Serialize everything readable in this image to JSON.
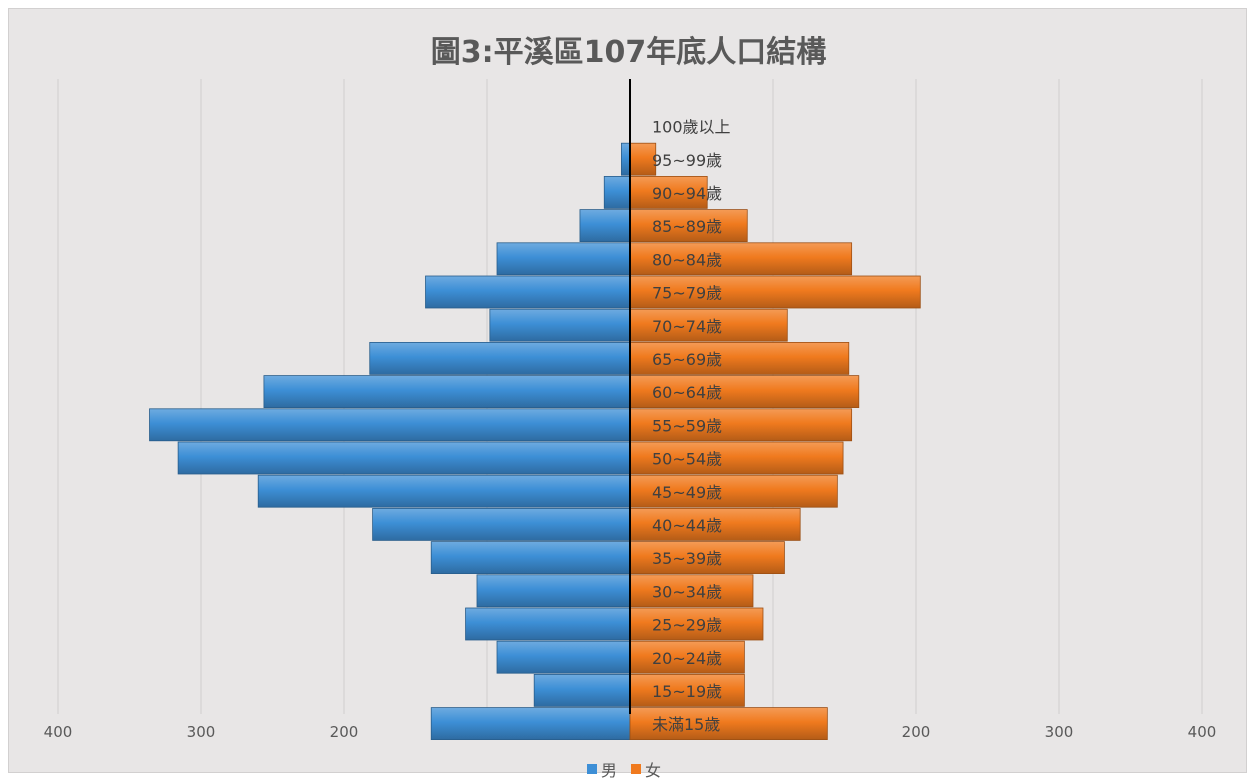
{
  "chart_data": {
    "type": "bar",
    "orientation": "horizontal",
    "title": "圖3:平溪區107年底人口結構",
    "categories": [
      "100歲以上",
      "95~99歲",
      "90~94歲",
      "85~89歲",
      "80~84歲",
      "75~79歲",
      "70~74歲",
      "65~69歲",
      "60~64歲",
      "55~59歲",
      "50~54歲",
      "45~49歲",
      "40~44歲",
      "35~39歲",
      "30~34歲",
      "25~29歲",
      "20~24歲",
      "15~19歲",
      "未滿15歲"
    ],
    "series": [
      {
        "name": "男",
        "color": "#3d8fd6",
        "values": [
          0,
          6,
          18,
          35,
          93,
          143,
          98,
          182,
          256,
          336,
          316,
          260,
          180,
          139,
          107,
          115,
          93,
          67,
          139
        ]
      },
      {
        "name": "女",
        "color": "#f07a1e",
        "values": [
          0,
          18,
          54,
          82,
          155,
          203,
          110,
          153,
          160,
          155,
          149,
          145,
          119,
          108,
          86,
          93,
          80,
          80,
          138
        ]
      }
    ],
    "xaxis_ticks": [
      "400",
      "300",
      "200",
      "100",
      "0",
      "100",
      "200",
      "300",
      "400"
    ],
    "xlim": [
      -400,
      400
    ],
    "grid": true,
    "legend_position": "bottom"
  }
}
